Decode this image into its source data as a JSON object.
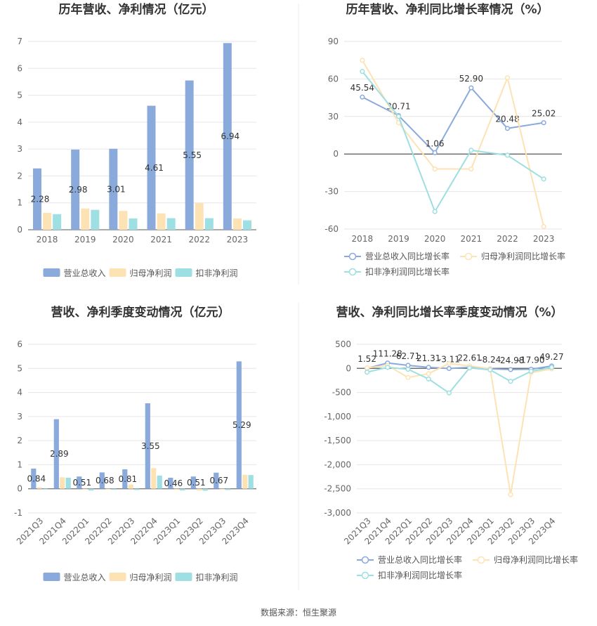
{
  "source": "数据来源：恒生聚源",
  "colors": {
    "revenue": "#8aaadc",
    "netprofit": "#fde2b4",
    "deducted": "#9ddfe2"
  },
  "chart_data": [
    {
      "id": "annual_amount",
      "type": "bar",
      "title": "历年营收、净利情况（亿元）",
      "categories": [
        "2018",
        "2019",
        "2020",
        "2021",
        "2022",
        "2023"
      ],
      "series": [
        {
          "name": "营业总收入",
          "values": [
            2.28,
            2.98,
            3.01,
            4.61,
            5.55,
            6.94
          ],
          "labels": [
            "2.28",
            "2.98",
            "3.01",
            "4.61",
            "5.55",
            "6.94"
          ]
        },
        {
          "name": "归母净利润",
          "values": [
            0.63,
            0.79,
            0.7,
            0.61,
            0.99,
            0.42
          ]
        },
        {
          "name": "扣非净利润",
          "values": [
            0.58,
            0.74,
            0.42,
            0.43,
            0.43,
            0.35
          ]
        }
      ],
      "yticks": [
        "0",
        "1",
        "2",
        "3",
        "4",
        "5",
        "6",
        "7"
      ],
      "ylim": [
        0,
        7
      ]
    },
    {
      "id": "annual_growth",
      "type": "line",
      "title": "历年营收、净利同比增长率情况（%）",
      "categories": [
        "2018",
        "2019",
        "2020",
        "2021",
        "2022",
        "2023"
      ],
      "series": [
        {
          "name": "营业总收入同比增长率",
          "values": [
            45.54,
            30.71,
            1.06,
            52.9,
            20.48,
            25.02
          ],
          "labels": [
            "45.54",
            "30.71",
            "1.06",
            "52.90",
            "20.48",
            "25.02"
          ]
        },
        {
          "name": "归母净利润同比增长率",
          "values": [
            75,
            25,
            -12,
            -12,
            61,
            -58
          ]
        },
        {
          "name": "扣非净利润同比增长率",
          "values": [
            66,
            30,
            -46,
            3,
            -1,
            -20
          ]
        }
      ],
      "yticks": [
        "-60",
        "-30",
        "0",
        "30",
        "60",
        "90"
      ],
      "ylim": [
        -60,
        90
      ]
    },
    {
      "id": "quarterly_amount",
      "type": "bar",
      "title": "营收、净利季度变动情况（亿元）",
      "categories": [
        "2021Q3",
        "2021Q4",
        "2022Q1",
        "2022Q2",
        "2022Q3",
        "2022Q4",
        "2023Q1",
        "2023Q2",
        "2023Q3",
        "2023Q4"
      ],
      "series": [
        {
          "name": "营业总收入",
          "values": [
            0.84,
            2.89,
            0.51,
            0.68,
            0.81,
            3.55,
            0.46,
            0.51,
            0.67,
            5.29
          ],
          "labels": [
            "0.84",
            "2.89",
            "0.51",
            "0.68",
            "0.81",
            "3.55",
            "0.46",
            "0.51",
            "0.67",
            "5.29"
          ]
        },
        {
          "name": "归母净利润",
          "values": [
            0.06,
            0.48,
            -0.02,
            -0.03,
            0.18,
            0.86,
            -0.04,
            -0.07,
            -0.03,
            0.58
          ]
        },
        {
          "name": "扣非净利润",
          "values": [
            -0.01,
            0.46,
            -0.07,
            -0.04,
            -0.05,
            0.55,
            -0.07,
            -0.08,
            -0.05,
            0.57
          ]
        }
      ],
      "yticks": [
        "-1",
        "0",
        "1",
        "2",
        "3",
        "4",
        "5",
        "6"
      ],
      "ylim": [
        -1,
        6
      ]
    },
    {
      "id": "quarterly_growth",
      "type": "line",
      "title": "营收、净利同比增长率季度变动情况（%）",
      "categories": [
        "2021Q3",
        "2021Q4",
        "2022Q1",
        "2022Q2",
        "2022Q3",
        "2022Q4",
        "2023Q1",
        "2023Q2",
        "2023Q3",
        "2023Q4"
      ],
      "series": [
        {
          "name": "营业总收入同比增长率",
          "values": [
            1.52,
            111.28,
            62.71,
            21.31,
            -3.11,
            22.61,
            -8.24,
            -24.98,
            -17.9,
            49.27
          ],
          "labels": [
            "1.52",
            "111.28",
            "62.71",
            "21.31",
            "-3.11",
            "22.61",
            "-8.24",
            "-24.98",
            "-17.90",
            "49.27"
          ]
        },
        {
          "name": "归母净利润同比增长率",
          "values": [
            10,
            60,
            -190,
            -110,
            100,
            50,
            -5,
            -2620,
            -90,
            -10
          ]
        },
        {
          "name": "扣非净利润同比增长率",
          "values": [
            -80,
            20,
            -20,
            -220,
            -510,
            10,
            -30,
            -270,
            -60,
            20
          ]
        }
      ],
      "yticks": [
        "-3,000",
        "-2,500",
        "-2,000",
        "-1,500",
        "-1,000",
        "-500",
        "0",
        "500"
      ],
      "ylim": [
        -3000,
        500
      ]
    }
  ]
}
